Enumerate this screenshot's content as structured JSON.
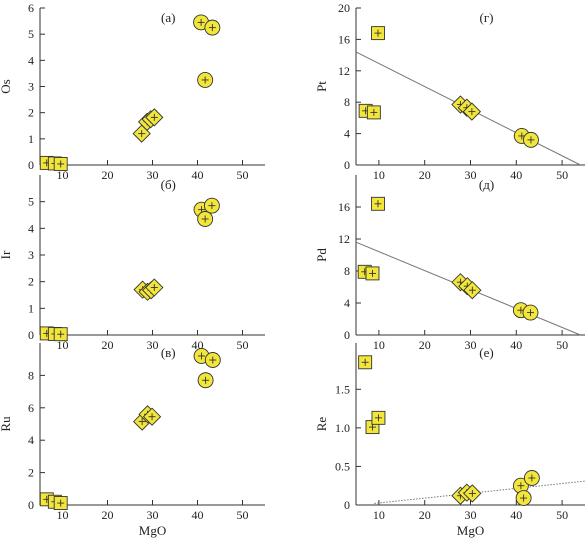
{
  "colors": {
    "marker_fill": "#f2e63a",
    "marker_stroke": "#333333",
    "trend_line": "#777777"
  },
  "chart_data": [
    {
      "type": "scatter",
      "panel": "(а)",
      "ylabel": "Os",
      "xlabel": "",
      "xlim": [
        5,
        55
      ],
      "ylim": [
        0,
        6
      ],
      "xticks": [
        10,
        20,
        30,
        40,
        50
      ],
      "yticks": [
        0,
        1,
        2,
        3,
        4,
        5,
        6
      ],
      "points": [
        {
          "x": 6.5,
          "y": 0.08,
          "shape": "square"
        },
        {
          "x": 8.3,
          "y": 0.06,
          "shape": "square"
        },
        {
          "x": 9.6,
          "y": 0.04,
          "shape": "square"
        },
        {
          "x": 27.6,
          "y": 1.2,
          "shape": "diamond"
        },
        {
          "x": 28.8,
          "y": 1.65,
          "shape": "diamond"
        },
        {
          "x": 29.6,
          "y": 1.75,
          "shape": "diamond"
        },
        {
          "x": 30.4,
          "y": 1.82,
          "shape": "diamond"
        },
        {
          "x": 40.8,
          "y": 5.45,
          "shape": "circle"
        },
        {
          "x": 43.3,
          "y": 5.25,
          "shape": "circle"
        },
        {
          "x": 41.7,
          "y": 3.25,
          "shape": "circle"
        }
      ],
      "trend": null
    },
    {
      "type": "scatter",
      "panel": "(б)",
      "ylabel": "Ir",
      "xlabel": "",
      "xlim": [
        5,
        55
      ],
      "ylim": [
        0,
        6
      ],
      "xticks": [
        10,
        20,
        30,
        40,
        50
      ],
      "yticks": [
        0,
        1,
        2,
        3,
        4,
        5
      ],
      "points": [
        {
          "x": 6.5,
          "y": 0.06,
          "shape": "square"
        },
        {
          "x": 8.3,
          "y": 0.04,
          "shape": "square"
        },
        {
          "x": 9.6,
          "y": 0.03,
          "shape": "square"
        },
        {
          "x": 27.8,
          "y": 1.7,
          "shape": "diamond"
        },
        {
          "x": 28.9,
          "y": 1.62,
          "shape": "diamond"
        },
        {
          "x": 29.7,
          "y": 1.68,
          "shape": "diamond"
        },
        {
          "x": 30.4,
          "y": 1.78,
          "shape": "diamond"
        },
        {
          "x": 40.9,
          "y": 4.7,
          "shape": "circle"
        },
        {
          "x": 43.2,
          "y": 4.85,
          "shape": "circle"
        },
        {
          "x": 41.7,
          "y": 4.35,
          "shape": "circle"
        }
      ],
      "trend": null
    },
    {
      "type": "scatter",
      "panel": "(в)",
      "ylabel": "Ru",
      "xlabel": "MgO",
      "xlim": [
        5,
        55
      ],
      "ylim": [
        0,
        10
      ],
      "xticks": [
        10,
        20,
        30,
        40,
        50
      ],
      "yticks": [
        0,
        2,
        4,
        6,
        8
      ],
      "points": [
        {
          "x": 6.5,
          "y": 0.35,
          "shape": "square"
        },
        {
          "x": 8.3,
          "y": 0.2,
          "shape": "square"
        },
        {
          "x": 9.6,
          "y": 0.12,
          "shape": "square"
        },
        {
          "x": 27.7,
          "y": 5.15,
          "shape": "diamond"
        },
        {
          "x": 28.9,
          "y": 5.6,
          "shape": "diamond"
        },
        {
          "x": 29.9,
          "y": 5.45,
          "shape": "diamond"
        },
        {
          "x": 40.9,
          "y": 9.2,
          "shape": "circle"
        },
        {
          "x": 43.4,
          "y": 8.95,
          "shape": "circle"
        },
        {
          "x": 41.8,
          "y": 7.7,
          "shape": "circle"
        }
      ],
      "trend": null
    },
    {
      "type": "scatter",
      "panel": "(г)",
      "ylabel": "Pt",
      "xlabel": "",
      "xlim": [
        5,
        55
      ],
      "ylim": [
        0,
        20
      ],
      "xticks": [
        10,
        20,
        30,
        40,
        50
      ],
      "yticks": [
        0,
        4,
        8,
        12,
        16,
        20
      ],
      "points": [
        {
          "x": 9.8,
          "y": 16.8,
          "shape": "square"
        },
        {
          "x": 7.1,
          "y": 6.9,
          "shape": "square"
        },
        {
          "x": 8.9,
          "y": 6.7,
          "shape": "square"
        },
        {
          "x": 27.8,
          "y": 7.7,
          "shape": "diamond"
        },
        {
          "x": 29.2,
          "y": 7.3,
          "shape": "diamond"
        },
        {
          "x": 30.3,
          "y": 6.8,
          "shape": "diamond"
        },
        {
          "x": 41.2,
          "y": 3.7,
          "shape": "circle"
        },
        {
          "x": 43.2,
          "y": 3.2,
          "shape": "circle"
        }
      ],
      "trend": {
        "style": "solid",
        "from": [
          5,
          14.4
        ],
        "to": [
          54,
          0
        ]
      }
    },
    {
      "type": "scatter",
      "panel": "(д)",
      "ylabel": "Pd",
      "xlabel": "",
      "xlim": [
        5,
        55
      ],
      "ylim": [
        0,
        20
      ],
      "xticks": [
        10,
        20,
        30,
        40,
        50
      ],
      "yticks": [
        0,
        4,
        8,
        12,
        16
      ],
      "points": [
        {
          "x": 9.8,
          "y": 16.4,
          "shape": "square"
        },
        {
          "x": 6.9,
          "y": 7.9,
          "shape": "square"
        },
        {
          "x": 8.6,
          "y": 7.7,
          "shape": "square"
        },
        {
          "x": 27.8,
          "y": 6.6,
          "shape": "diamond"
        },
        {
          "x": 29.3,
          "y": 6.1,
          "shape": "diamond"
        },
        {
          "x": 30.4,
          "y": 5.6,
          "shape": "diamond"
        },
        {
          "x": 41.0,
          "y": 3.1,
          "shape": "circle"
        },
        {
          "x": 43.1,
          "y": 2.8,
          "shape": "circle"
        }
      ],
      "trend": {
        "style": "solid",
        "from": [
          5,
          11.6
        ],
        "to": [
          54,
          0
        ]
      }
    },
    {
      "type": "scatter",
      "panel": "(е)",
      "ylabel": "Re",
      "xlabel": "MgO",
      "xlim": [
        5,
        55
      ],
      "ylim": [
        0,
        2.1
      ],
      "xticks": [
        10,
        20,
        30,
        40,
        50
      ],
      "yticks": [
        0,
        0.5,
        1.0,
        1.5
      ],
      "ytick_labels": [
        "0",
        "0.5",
        "1.0",
        "1.5"
      ],
      "points": [
        {
          "x": 7.0,
          "y": 1.85,
          "shape": "square"
        },
        {
          "x": 8.6,
          "y": 1.01,
          "shape": "square"
        },
        {
          "x": 9.9,
          "y": 1.13,
          "shape": "square"
        },
        {
          "x": 27.8,
          "y": 0.12,
          "shape": "diamond"
        },
        {
          "x": 29.2,
          "y": 0.16,
          "shape": "diamond"
        },
        {
          "x": 30.4,
          "y": 0.15,
          "shape": "diamond"
        },
        {
          "x": 41.0,
          "y": 0.25,
          "shape": "circle"
        },
        {
          "x": 43.4,
          "y": 0.35,
          "shape": "circle"
        },
        {
          "x": 41.6,
          "y": 0.09,
          "shape": "circle"
        }
      ],
      "trend": {
        "style": "dotted",
        "from": [
          9,
          0.02
        ],
        "to": [
          55,
          0.31
        ]
      }
    }
  ]
}
